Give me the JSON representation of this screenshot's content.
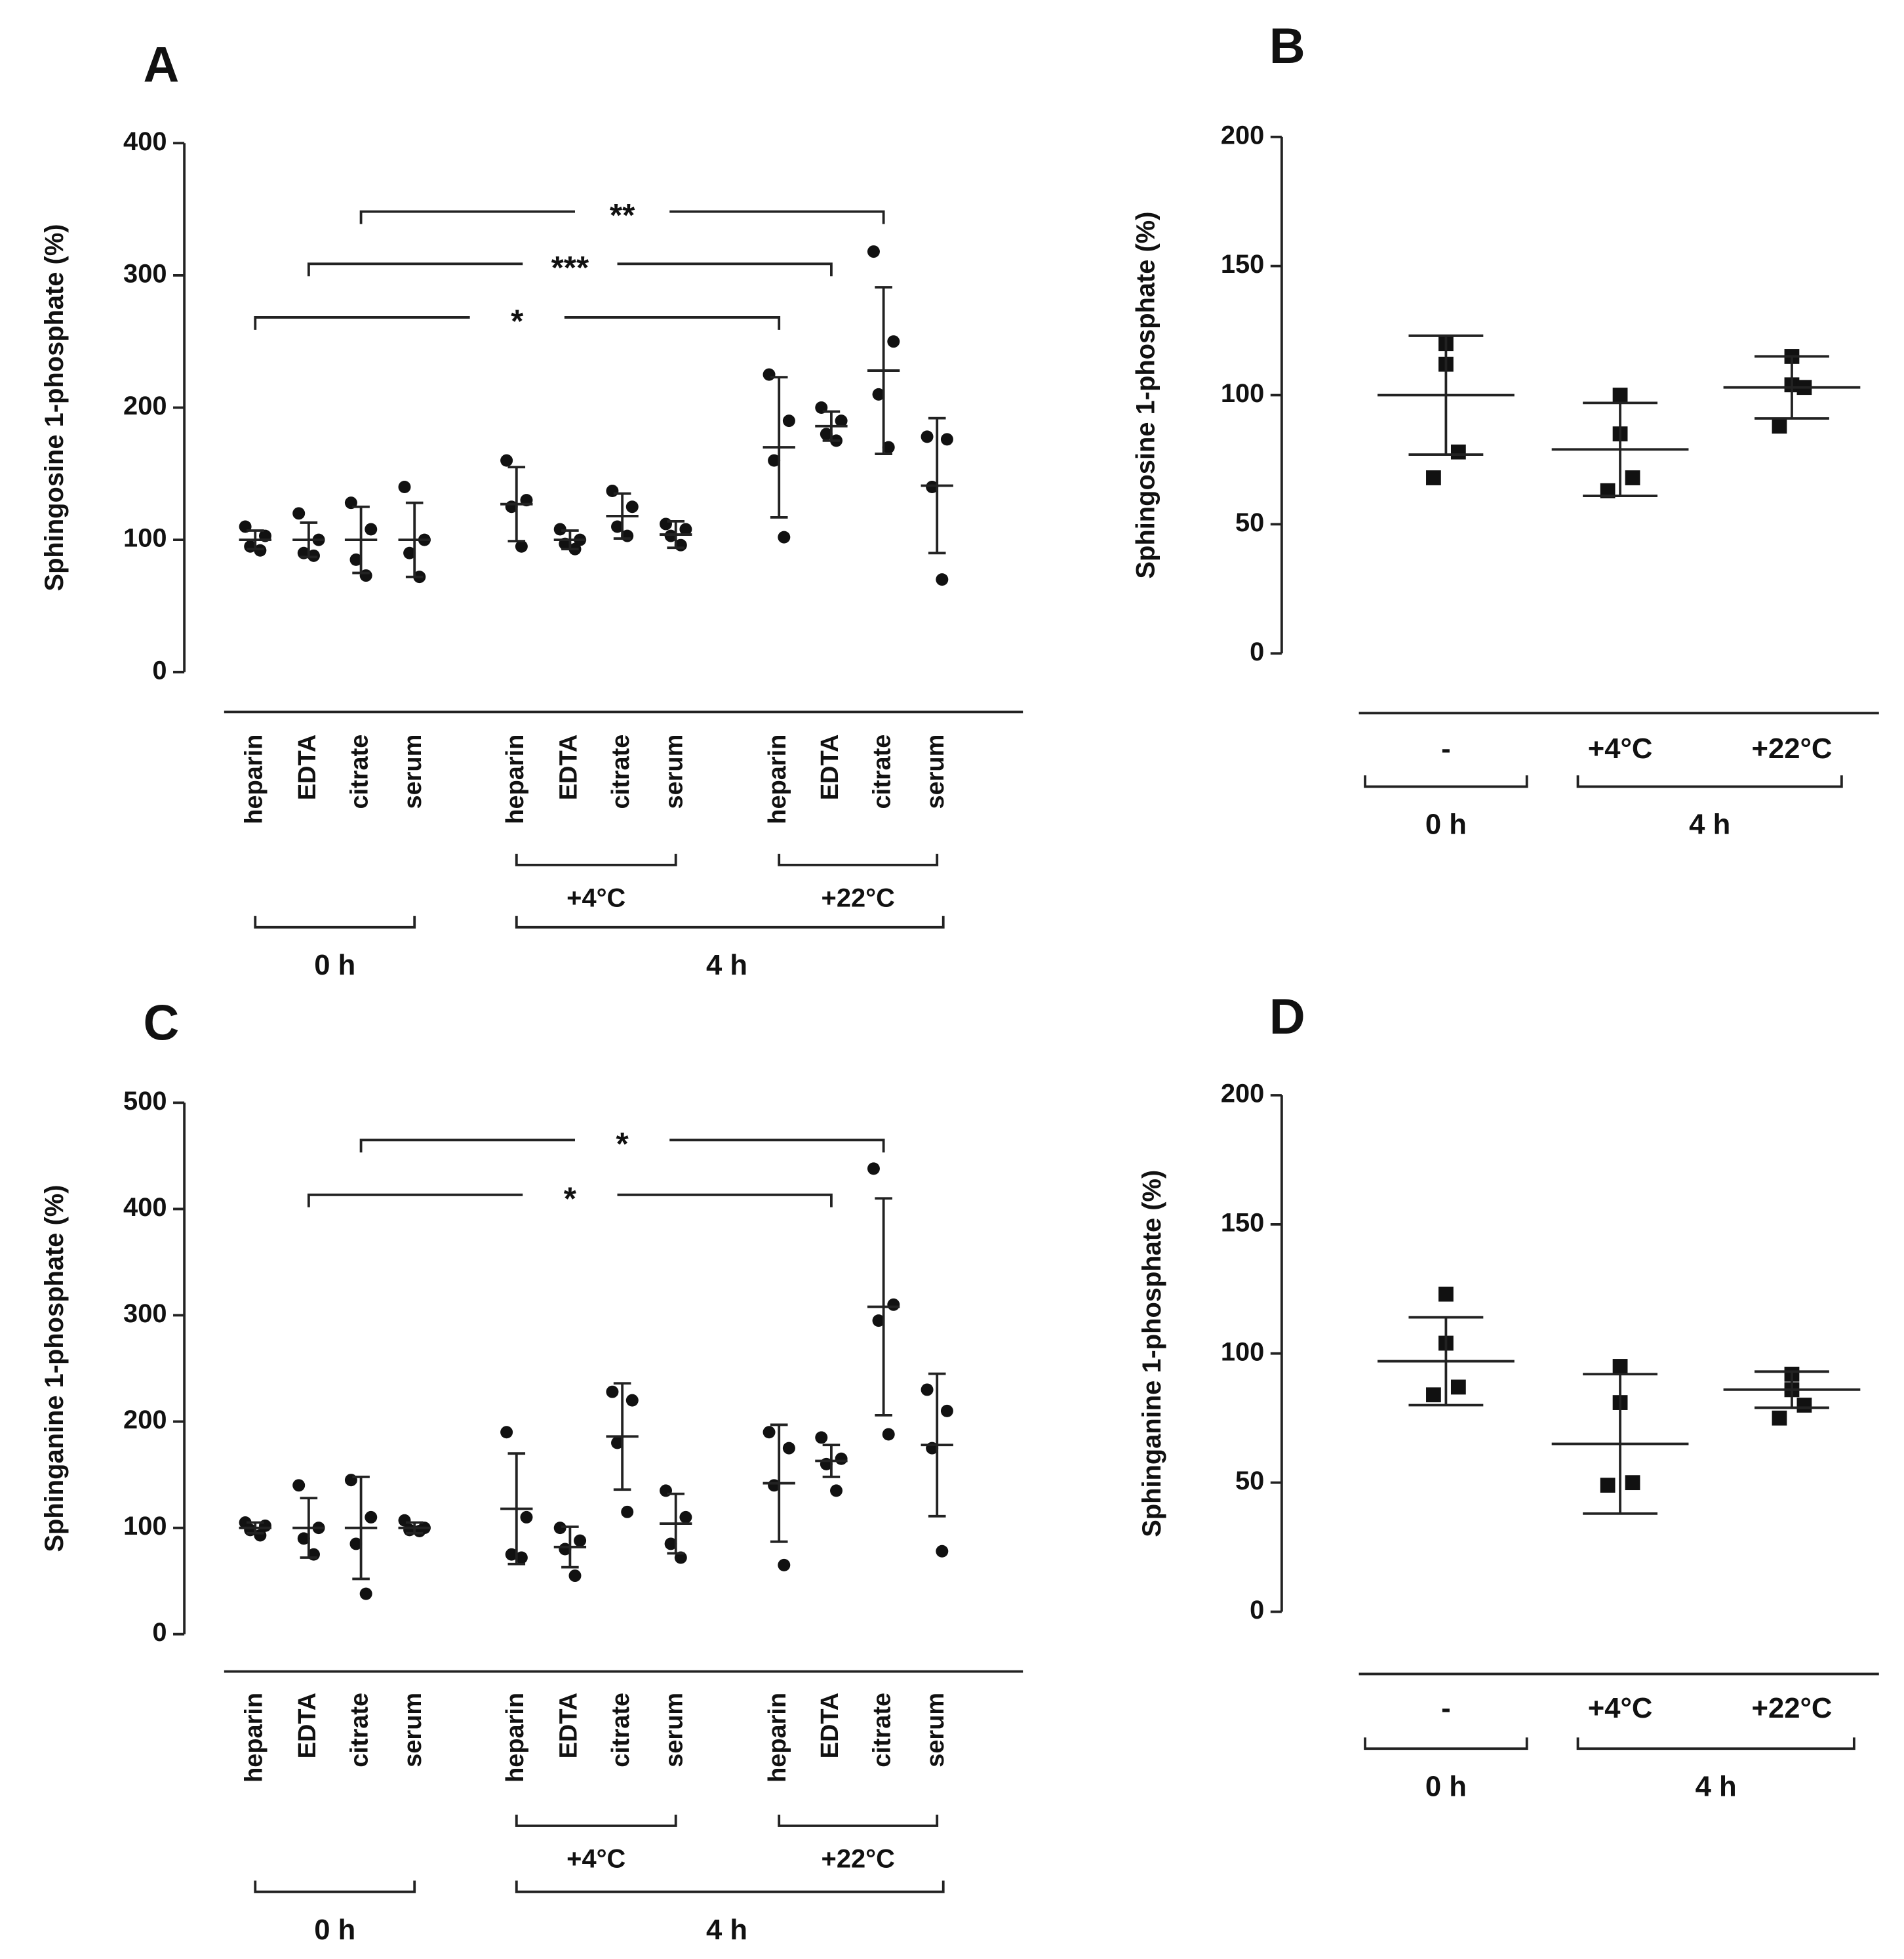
{
  "chart_data": [
    {
      "type": "dot",
      "label": "A",
      "y_label": "Sphingosine 1-phosphate (%)",
      "marker": "circle",
      "ylim": [
        0,
        400
      ],
      "yticks": [
        0,
        100,
        200,
        300,
        400
      ],
      "categories": [
        "heparin",
        "EDTA",
        "citrate",
        "serum",
        "heparin",
        "EDTA",
        "citrate",
        "serum",
        "heparin",
        "EDTA",
        "citrate",
        "serum"
      ],
      "points": [
        [
          110,
          103,
          95,
          92
        ],
        [
          120,
          100,
          90,
          88
        ],
        [
          128,
          108,
          85,
          73
        ],
        [
          140,
          100,
          90,
          72
        ],
        [
          160,
          130,
          125,
          95
        ],
        [
          108,
          100,
          97,
          93
        ],
        [
          137,
          125,
          110,
          103
        ],
        [
          112,
          108,
          103,
          96
        ],
        [
          225,
          190,
          160,
          102
        ],
        [
          200,
          190,
          180,
          175
        ],
        [
          318,
          250,
          210,
          170
        ],
        [
          178,
          176,
          140,
          70
        ]
      ],
      "means": [
        100,
        100,
        100,
        100,
        127,
        100,
        118,
        104,
        170,
        186,
        228,
        141
      ],
      "sd": [
        7,
        13,
        25,
        28,
        28,
        7,
        17,
        10,
        53,
        11,
        63,
        51
      ],
      "subgroups": [
        {
          "label": "+4°C",
          "span": [
            4,
            7
          ]
        },
        {
          "label": "+22°C",
          "span": [
            8,
            11
          ]
        }
      ],
      "groups": [
        {
          "label": "0 h",
          "span": [
            0,
            3
          ]
        },
        {
          "label": "4 h",
          "span": [
            4,
            11
          ]
        }
      ],
      "significance": [
        {
          "label": "*",
          "span": [
            0,
            8
          ]
        },
        {
          "label": "***",
          "span": [
            1,
            9
          ]
        },
        {
          "label": "**",
          "span": [
            2,
            10
          ]
        }
      ]
    },
    {
      "type": "dot",
      "label": "B",
      "y_label": "Sphingosine 1-phosphate (%)",
      "marker": "square",
      "ylim": [
        0,
        200
      ],
      "yticks": [
        0,
        50,
        100,
        150,
        200
      ],
      "categories": [
        "-",
        "+4°C",
        "+22°C"
      ],
      "points": [
        [
          120,
          112,
          78,
          68
        ],
        [
          100,
          85,
          68,
          63
        ],
        [
          115,
          104,
          103,
          88
        ]
      ],
      "means": [
        100,
        79,
        103
      ],
      "sd": [
        23,
        18,
        12
      ],
      "groups": [
        {
          "label": "0 h",
          "span": [
            0,
            0
          ]
        },
        {
          "label": "4 h",
          "span": [
            1,
            2
          ]
        }
      ]
    },
    {
      "type": "dot",
      "label": "C",
      "y_label": "Sphinganine 1-phosphate (%)",
      "marker": "circle",
      "ylim": [
        0,
        500
      ],
      "yticks": [
        0,
        100,
        200,
        300,
        400,
        500
      ],
      "categories": [
        "heparin",
        "EDTA",
        "citrate",
        "serum",
        "heparin",
        "EDTA",
        "citrate",
        "serum",
        "heparin",
        "EDTA",
        "citrate",
        "serum"
      ],
      "points": [
        [
          105,
          102,
          98,
          93
        ],
        [
          140,
          100,
          90,
          75
        ],
        [
          145,
          110,
          85,
          38
        ],
        [
          107,
          100,
          98,
          97
        ],
        [
          190,
          110,
          75,
          72
        ],
        [
          100,
          88,
          80,
          55
        ],
        [
          228,
          220,
          180,
          115
        ],
        [
          135,
          110,
          85,
          72
        ],
        [
          190,
          175,
          140,
          65
        ],
        [
          185,
          165,
          160,
          135
        ],
        [
          438,
          310,
          295,
          188
        ],
        [
          230,
          210,
          175,
          78
        ]
      ],
      "means": [
        100,
        100,
        100,
        100,
        118,
        82,
        186,
        104,
        142,
        163,
        308,
        178
      ],
      "sd": [
        5,
        28,
        48,
        5,
        52,
        19,
        50,
        28,
        55,
        15,
        102,
        67
      ],
      "subgroups": [
        {
          "label": "+4°C",
          "span": [
            4,
            7
          ]
        },
        {
          "label": "+22°C",
          "span": [
            8,
            11
          ]
        }
      ],
      "groups": [
        {
          "label": "0 h",
          "span": [
            0,
            3
          ]
        },
        {
          "label": "4 h",
          "span": [
            4,
            11
          ]
        }
      ],
      "significance": [
        {
          "label": "*",
          "span": [
            1,
            9
          ]
        },
        {
          "label": "*",
          "span": [
            2,
            10
          ]
        }
      ]
    },
    {
      "type": "dot",
      "label": "D",
      "y_label": "Sphinganine 1-phosphate (%)",
      "marker": "square",
      "ylim": [
        0,
        200
      ],
      "yticks": [
        0,
        50,
        100,
        150,
        200
      ],
      "categories": [
        "-",
        "+4°C",
        "+22°C"
      ],
      "points": [
        [
          123,
          104,
          87,
          84
        ],
        [
          95,
          81,
          50,
          49
        ],
        [
          92,
          86,
          80,
          75
        ]
      ],
      "means": [
        97,
        65,
        86
      ],
      "sd": [
        17,
        27,
        7
      ],
      "groups": [
        {
          "label": "0 h",
          "span": [
            0,
            0
          ]
        },
        {
          "label": "4 h",
          "span": [
            1,
            2
          ]
        }
      ]
    }
  ]
}
